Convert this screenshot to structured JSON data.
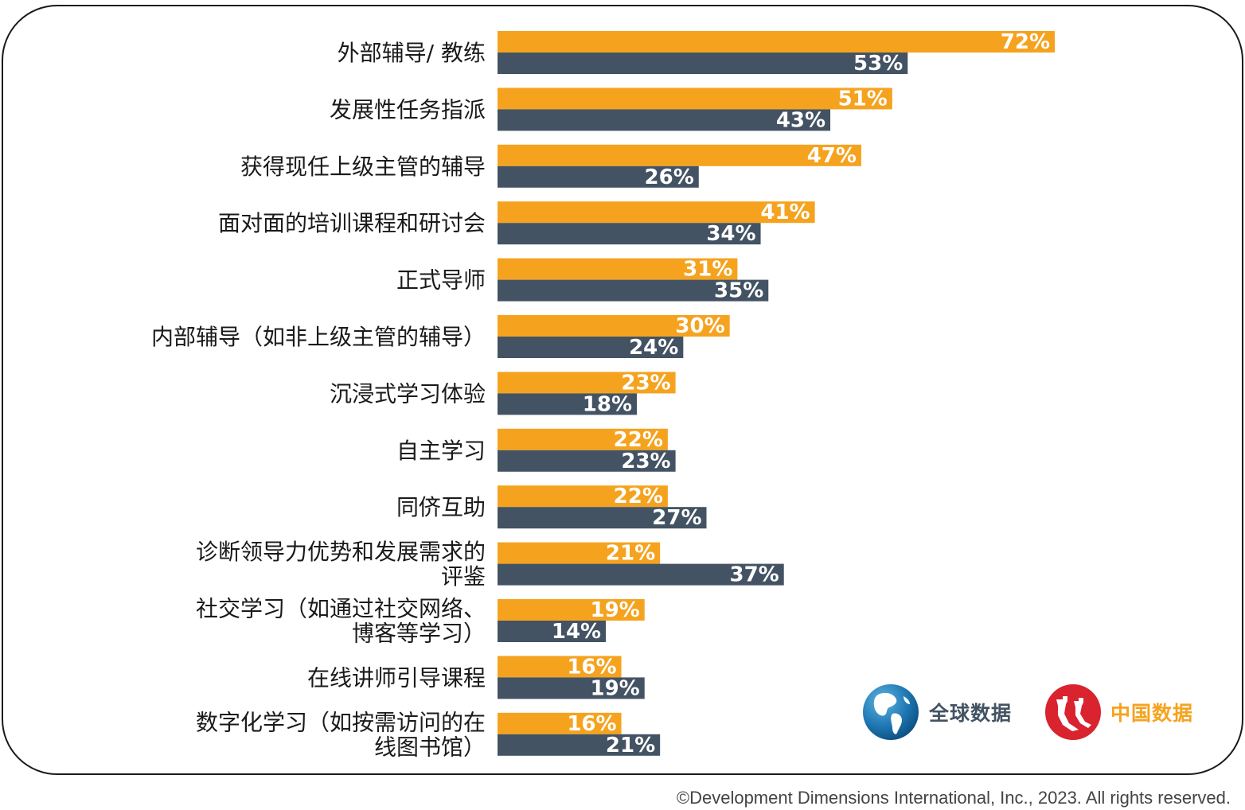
{
  "chart_data": {
    "type": "bar",
    "orientation": "horizontal",
    "categories": [
      [
        "外部辅导/ 教练"
      ],
      [
        "发展性任务指派"
      ],
      [
        "获得现任上级主管的辅导"
      ],
      [
        "面对面的培训课程和研讨会"
      ],
      [
        "正式导师"
      ],
      [
        "内部辅导（如非上级主管的辅导）"
      ],
      [
        "沉浸式学习体验"
      ],
      [
        "自主学习"
      ],
      [
        "同侪互助"
      ],
      [
        "诊断领导力优势和发展需求的",
        "评鉴"
      ],
      [
        "社交学习（如通过社交网络、",
        "博客等学习）"
      ],
      [
        "在线讲师引导课程"
      ],
      [
        "数字化学习（如按需访问的在",
        "线图书馆）"
      ]
    ],
    "series": [
      {
        "name": "中国数据",
        "color": "#F5A31F",
        "values": [
          72,
          51,
          47,
          41,
          31,
          30,
          23,
          22,
          22,
          21,
          19,
          16,
          16
        ],
        "labels": [
          "72%",
          "51%",
          "47%",
          "41%",
          "31%",
          "30%",
          "23%",
          "22%",
          "22%",
          "21%",
          "19%",
          "16%",
          "16%"
        ]
      },
      {
        "name": "全球数据",
        "color": "#435363",
        "values": [
          53,
          43,
          26,
          34,
          35,
          24,
          18,
          23,
          27,
          37,
          14,
          19,
          21
        ],
        "labels": [
          "53%",
          "43%",
          "26%",
          "34%",
          "35%",
          "24%",
          "18%",
          "23%",
          "27%",
          "37%",
          "14%",
          "19%",
          "21%"
        ]
      }
    ],
    "xlim": [
      0,
      100
    ],
    "grid": false,
    "legend_position": "bottom-right"
  },
  "legend": {
    "global_label": "全球数据",
    "china_label": "中国数据",
    "global_color": "#435363",
    "china_color": "#F5A31F",
    "global_icon": "globe-icon",
    "china_icon": "great-wall-icon"
  },
  "footer": {
    "copyright": "©Development Dimensions International, Inc., 2023. All rights reserved."
  }
}
